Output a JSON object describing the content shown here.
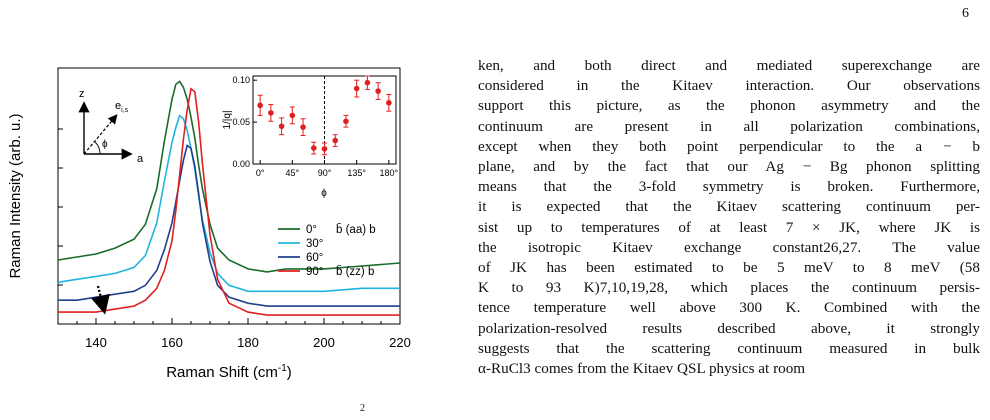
{
  "page_number": "6",
  "caption_fragment": "2",
  "figure": {
    "main": {
      "xlabel": "Raman Shift (cm",
      "xlabel_sup": "-1",
      "xlabel_close": ")",
      "ylabel": "Raman Intensity (arb. u.)",
      "xlim": [
        130,
        220
      ],
      "xticks": [
        "140",
        "160",
        "180",
        "200",
        "220"
      ],
      "axes_labels": {
        "z": "z",
        "e": "e",
        "e_sub": "i,s",
        "phi": "ϕ",
        "a": "a"
      },
      "legend": [
        {
          "angle": "0°",
          "label": "b̄ (aa) b",
          "color": "#1a6b2a"
        },
        {
          "angle": "30°",
          "label": "",
          "color": "#22b4e0"
        },
        {
          "angle": "60°",
          "label": "",
          "color": "#223f8a"
        },
        {
          "angle": "90°",
          "label": "b̄ (zz) b",
          "color": "#e02020"
        }
      ]
    },
    "chart_data": {
      "type": "line",
      "xlabel": "Raman Shift (cm-1)",
      "ylabel": "Raman Intensity (arb. u.)",
      "xlim": [
        130,
        220
      ],
      "ylim": [
        0,
        1
      ],
      "x": [
        130,
        135,
        140,
        145,
        150,
        153,
        156,
        158,
        160,
        161,
        162,
        163,
        164,
        165,
        166,
        167,
        168,
        170,
        172,
        175,
        180,
        185,
        190,
        200,
        210,
        220
      ],
      "series": [
        {
          "name": "0° b̄ (aa) b",
          "color": "#1a6b2a",
          "values": [
            0.12,
            0.13,
            0.14,
            0.16,
            0.19,
            0.24,
            0.36,
            0.52,
            0.66,
            0.71,
            0.72,
            0.7,
            0.66,
            0.6,
            0.53,
            0.44,
            0.36,
            0.24,
            0.16,
            0.12,
            0.09,
            0.08,
            0.09,
            0.09,
            0.1,
            0.11
          ]
        },
        {
          "name": "30°",
          "color": "#22b4e0",
          "values": [
            0.08,
            0.09,
            0.1,
            0.11,
            0.13,
            0.17,
            0.28,
            0.42,
            0.55,
            0.6,
            0.64,
            0.63,
            0.59,
            0.53,
            0.46,
            0.37,
            0.29,
            0.18,
            0.11,
            0.07,
            0.05,
            0.05,
            0.05,
            0.05,
            0.06,
            0.06
          ]
        },
        {
          "name": "60°",
          "color": "#223f8a",
          "values": [
            0.05,
            0.05,
            0.06,
            0.07,
            0.08,
            0.1,
            0.15,
            0.22,
            0.31,
            0.38,
            0.45,
            0.52,
            0.57,
            0.56,
            0.5,
            0.41,
            0.31,
            0.18,
            0.1,
            0.06,
            0.04,
            0.03,
            0.03,
            0.03,
            0.03,
            0.03
          ]
        },
        {
          "name": "90° b̄ (zz) b",
          "color": "#e02020",
          "values": [
            0.04,
            0.04,
            0.04,
            0.05,
            0.06,
            0.08,
            0.12,
            0.18,
            0.28,
            0.38,
            0.5,
            0.62,
            0.72,
            0.79,
            0.78,
            0.68,
            0.54,
            0.3,
            0.15,
            0.07,
            0.04,
            0.03,
            0.03,
            0.03,
            0.03,
            0.03
          ]
        }
      ]
    },
    "inset": {
      "ylabel": "1/|q|",
      "xlabel": "ϕ",
      "yticks": [
        "0.00",
        "0.05",
        "0.10"
      ],
      "xticks": [
        "0°",
        "45°",
        "90°",
        "135°",
        "180°"
      ],
      "xlim": [
        -10,
        190
      ],
      "ylim": [
        0,
        0.105
      ],
      "vline_x": 90,
      "color": "#e02020",
      "points": [
        {
          "x": 0,
          "y": 0.07,
          "err": 0.012
        },
        {
          "x": 15,
          "y": 0.061,
          "err": 0.01
        },
        {
          "x": 30,
          "y": 0.045,
          "err": 0.01
        },
        {
          "x": 45,
          "y": 0.058,
          "err": 0.01
        },
        {
          "x": 60,
          "y": 0.044,
          "err": 0.01
        },
        {
          "x": 75,
          "y": 0.019,
          "err": 0.007
        },
        {
          "x": 90,
          "y": 0.018,
          "err": 0.007
        },
        {
          "x": 105,
          "y": 0.028,
          "err": 0.007
        },
        {
          "x": 120,
          "y": 0.051,
          "err": 0.007
        },
        {
          "x": 135,
          "y": 0.09,
          "err": 0.01
        },
        {
          "x": 150,
          "y": 0.097,
          "err": 0.008
        },
        {
          "x": 165,
          "y": 0.087,
          "err": 0.01
        },
        {
          "x": 180,
          "y": 0.073,
          "err": 0.01
        }
      ]
    }
  },
  "text_lines": [
    "ken, and both direct and mediated superexchange are",
    "considered in the Kitaev interaction. Our observations",
    "support this picture, as the phonon asymmetry and the",
    "continuum are present in all polarization combinations,",
    "except when they both point perpendicular to the a − b",
    "plane, and by the fact that our Ag − Bg phonon splitting",
    "means that the 3-fold symmetry is broken. Furthermore,",
    "it is expected that the Kitaev scattering continuum per-",
    "sist up to temperatures of at least 7 × JK, where JK is",
    "the isotropic Kitaev exchange constant26,27. The value",
    "of JK has been estimated to be 5 meV to 8 meV (58",
    "K to 93 K)7,10,19,28, which places the continuum persis-",
    "tence temperature well above 300 K. Combined with the",
    "polarization-resolved results described above, it strongly",
    "suggests that the scattering continuum measured in bulk",
    "α-RuCl3 comes from the Kitaev QSL physics at room"
  ]
}
